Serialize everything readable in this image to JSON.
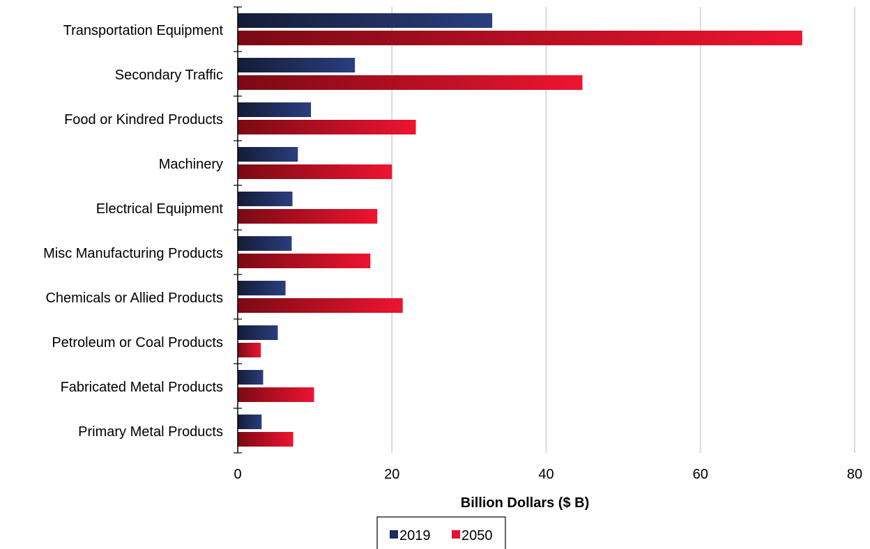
{
  "chart_data": {
    "type": "bar",
    "orientation": "horizontal",
    "categories": [
      "Transportation Equipment",
      "Secondary Traffic",
      "Food or Kindred Products",
      "Machinery",
      "Electrical Equipment",
      "Misc Manufacturing Products",
      "Chemicals or Allied Products",
      "Petroleum or Coal Products",
      "Fabricated Metal Products",
      "Primary Metal Products"
    ],
    "series": [
      {
        "name": "2019",
        "color": "#1f2d5c",
        "values": [
          33.0,
          15.2,
          9.5,
          7.8,
          7.1,
          7.0,
          6.2,
          5.2,
          3.3,
          3.1
        ]
      },
      {
        "name": "2050",
        "color": "#e31232",
        "values": [
          73.2,
          44.7,
          23.1,
          20.0,
          18.1,
          17.2,
          21.4,
          3.0,
          9.9,
          7.2
        ]
      }
    ],
    "xlabel": "Billion Dollars ($ B)",
    "ylabel": "",
    "xlim": [
      0,
      80
    ],
    "xticks": [
      0,
      20,
      40,
      60,
      80
    ],
    "grid": "vertical",
    "legend_position": "bottom-center"
  }
}
